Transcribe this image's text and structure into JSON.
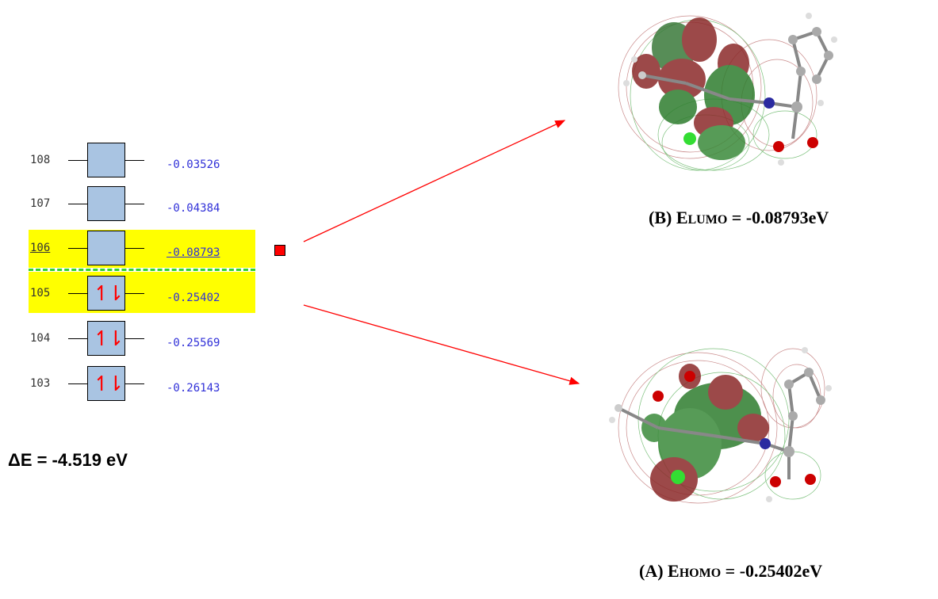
{
  "mo_levels": [
    {
      "number": "108",
      "energy": "-0.03526",
      "occupied": false
    },
    {
      "number": "107",
      "energy": "-0.04384",
      "occupied": false
    },
    {
      "number": "106",
      "energy": "-0.08793",
      "occupied": false
    },
    {
      "number": "105",
      "energy": "-0.25402",
      "occupied": true
    },
    {
      "number": "104",
      "energy": "-0.25569",
      "occupied": true
    },
    {
      "number": "103",
      "energy": "-0.26143",
      "occupied": true
    }
  ],
  "spin_symbol": "↿⇂",
  "colors": {
    "highlight": "#ffff00",
    "orbital_box": "#a9c4e2",
    "energy_text": "#3030d8",
    "gap_line": "#2fd12f",
    "arrow": "#ff0000",
    "positive_lobe": "#2e8b2e",
    "negative_lobe": "#9b1c1c"
  },
  "labels": {
    "delta_e": "ΔE = -4.519 eV",
    "lumo": {
      "prefix": "(B)  E",
      "sub": "LUMO",
      "value": " = -0.08793eV"
    },
    "homo": {
      "prefix": "(A)  E",
      "sub": "HOMO",
      "value": " = -0.25402eV"
    }
  }
}
